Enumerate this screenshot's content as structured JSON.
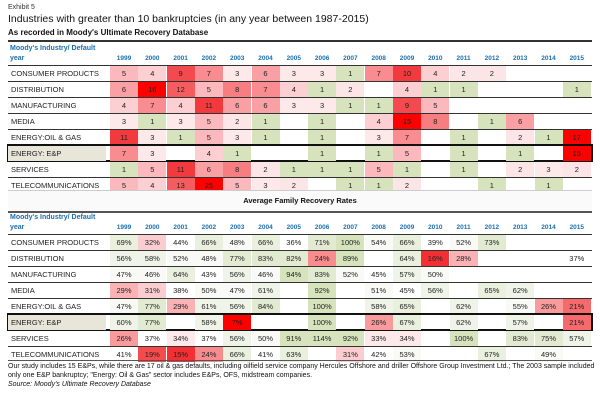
{
  "exhibit": "Exhibit 5",
  "title": "Industries with greater than 10 bankruptcies (in any year between 1987-2015)",
  "subtitle": "As recorded in Moody's Ultimate Recovery Database",
  "header_label_line1": "Moody's Industry/  Default",
  "header_label_line2": "year",
  "years": [
    "1999",
    "2000",
    "2001",
    "2002",
    "2003",
    "2004",
    "2005",
    "2006",
    "2007",
    "2008",
    "2009",
    "2010",
    "2011",
    "2012",
    "2013",
    "2014",
    "2015"
  ],
  "bankruptcies": {
    "rows": [
      {
        "industry": "CONSUMER PRODUCTS",
        "values": [
          "5",
          "4",
          "9",
          "7",
          "3",
          "6",
          "3",
          "3",
          "1",
          "7",
          "10",
          "4",
          "2",
          "2",
          "",
          "",
          ""
        ],
        "highlight": false
      },
      {
        "industry": "DISTRIBUTION",
        "values": [
          "6",
          "16",
          "12",
          "5",
          "8",
          "7",
          "4",
          "1",
          "2",
          "",
          "4",
          "1",
          "1",
          "",
          "",
          "",
          "1"
        ],
        "highlight": false
      },
      {
        "industry": "MANUFACTURING",
        "values": [
          "4",
          "7",
          "4",
          "11",
          "6",
          "6",
          "3",
          "3",
          "1",
          "1",
          "9",
          "5",
          "",
          "",
          "",
          "",
          ""
        ],
        "highlight": false
      },
      {
        "industry": "MEDIA",
        "values": [
          "3",
          "1",
          "3",
          "5",
          "2",
          "1",
          "",
          "1",
          "",
          "4",
          "15",
          "8",
          "",
          "1",
          "6",
          "",
          ""
        ],
        "highlight": false
      },
      {
        "industry": "ENERGY:OIL & GAS",
        "values": [
          "11",
          "3",
          "1",
          "5",
          "3",
          "1",
          "",
          "1",
          "",
          "3",
          "7",
          "",
          "1",
          "",
          "2",
          "1",
          "17"
        ],
        "highlight": false
      },
      {
        "industry": "ENERGY: E&P",
        "values": [
          "7",
          "3",
          "",
          "4",
          "1",
          "",
          "",
          "1",
          "",
          "1",
          "5",
          "",
          "1",
          "",
          "1",
          "",
          "15"
        ],
        "highlight": true
      },
      {
        "industry": "SERVICES",
        "values": [
          "1",
          "5",
          "11",
          "6",
          "8",
          "2",
          "1",
          "1",
          "1",
          "5",
          "1",
          "",
          "1",
          "",
          "2",
          "3",
          "2"
        ],
        "highlight": false
      },
      {
        "industry": "TELECOMMUNICATIONS",
        "values": [
          "5",
          "4",
          "13",
          "25",
          "5",
          "3",
          "2",
          "",
          "1",
          "1",
          "2",
          "",
          "",
          "1",
          "",
          "1",
          ""
        ],
        "highlight": false
      }
    ]
  },
  "recovery_section_title": "Average Family Recovery Rates",
  "recovery": {
    "rows": [
      {
        "industry": "CONSUMER PRODUCTS",
        "values": [
          "69%",
          "32%",
          "44%",
          "66%",
          "48%",
          "66%",
          "36%",
          "71%",
          "100%",
          "54%",
          "66%",
          "39%",
          "52%",
          "73%",
          "",
          "",
          ""
        ],
        "highlight": false
      },
      {
        "industry": "DISTRIBUTION",
        "values": [
          "56%",
          "58%",
          "52%",
          "48%",
          "77%",
          "83%",
          "82%",
          "24%",
          "89%",
          "",
          "64%",
          "16%",
          "28%",
          "",
          "",
          "",
          "37%"
        ],
        "highlight": false
      },
      {
        "industry": "MANUFACTURING",
        "values": [
          "47%",
          "46%",
          "64%",
          "43%",
          "56%",
          "46%",
          "94%",
          "83%",
          "52%",
          "45%",
          "57%",
          "50%",
          "",
          "",
          "",
          "",
          ""
        ],
        "highlight": false
      },
      {
        "industry": "MEDIA",
        "values": [
          "29%",
          "31%",
          "38%",
          "50%",
          "47%",
          "61%",
          "",
          "92%",
          "",
          "51%",
          "45%",
          "56%",
          "",
          "65%",
          "62%",
          "",
          ""
        ],
        "highlight": false
      },
      {
        "industry": "ENERGY:OIL & GAS",
        "values": [
          "47%",
          "77%",
          "29%",
          "61%",
          "56%",
          "84%",
          "",
          "100%",
          "",
          "58%",
          "65%",
          "",
          "62%",
          "",
          "55%",
          "26%",
          "21%"
        ],
        "highlight": false
      },
      {
        "industry": "ENERGY: E&P",
        "values": [
          "60%",
          "77%",
          "",
          "58%",
          "7%",
          "",
          "",
          "100%",
          "",
          "26%",
          "67%",
          "",
          "62%",
          "",
          "57%",
          "",
          "21%"
        ],
        "highlight": true
      },
      {
        "industry": "SERVICES",
        "values": [
          "26%",
          "37%",
          "34%",
          "37%",
          "56%",
          "50%",
          "91%",
          "114%",
          "92%",
          "33%",
          "34%",
          "",
          "100%",
          "",
          "83%",
          "75%",
          "57%"
        ],
        "highlight": false
      },
      {
        "industry": "TELECOMMUNICATIONS",
        "values": [
          "41%",
          "19%",
          "15%",
          "24%",
          "66%",
          "41%",
          "63%",
          "",
          "31%",
          "42%",
          "53%",
          "",
          "",
          "67%",
          "",
          "49%",
          ""
        ],
        "highlight": false
      }
    ]
  },
  "footnote": "Our study includes 15 E&Ps, while there are 17 oil & gas defaults, including oilfield service company Hercules Offshore and driller Offshore Group Investment Ltd.; The 2003 sample included only one E&P bankruptcy; \"Energy: Oil & Gas\" sector includes E&Ps, OFS, midstream companies.",
  "source": "Source: Moody's Ultimate Recovery Database",
  "colors": {
    "header_blue": "#1a6fb0",
    "highlight_row_bg": "#e8e6d8",
    "heat_red": "#ff0000",
    "heat_green": "#d6e3bc"
  }
}
